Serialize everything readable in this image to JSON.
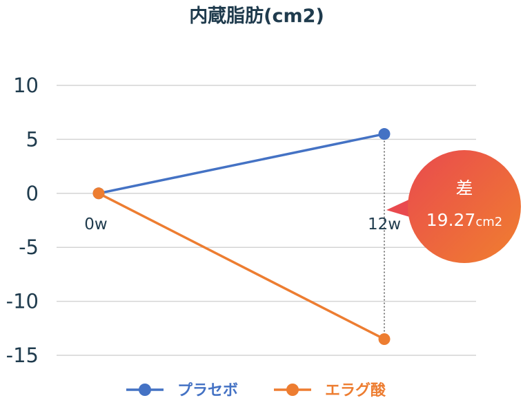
{
  "chart_data": {
    "type": "line",
    "title": "内蔵脂肪(cm2)",
    "x": [
      "0w",
      "12w"
    ],
    "series": [
      {
        "name": "プラセボ",
        "values": [
          0,
          5.5
        ],
        "color": "#4472c4"
      },
      {
        "name": "エラグ酸",
        "values": [
          0,
          -13.5
        ],
        "color": "#ed7d31"
      }
    ],
    "yticks": [
      10,
      5,
      0,
      -5,
      -10,
      -15
    ],
    "ylim": [
      -15,
      10
    ],
    "grid": true,
    "legend_position": "bottom",
    "annotation": {
      "line1": "差",
      "value": "19.27",
      "unit": "cm2"
    }
  }
}
